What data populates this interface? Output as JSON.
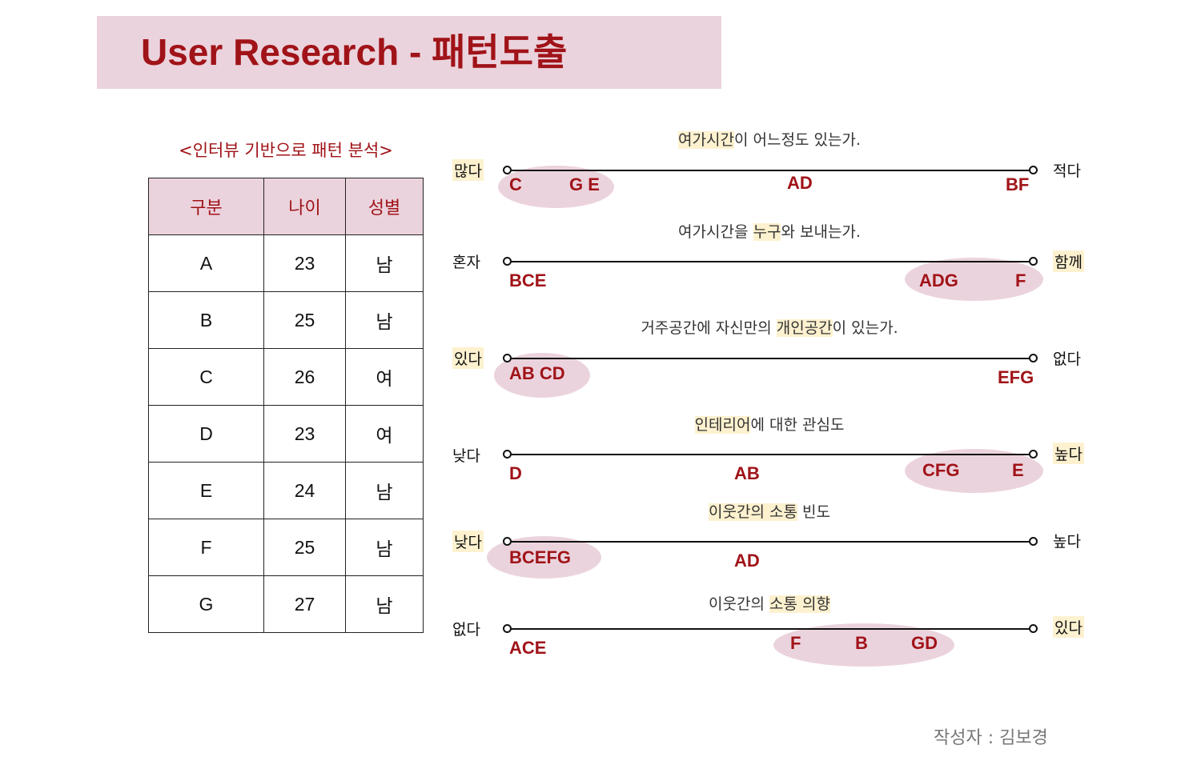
{
  "title": "User Research - 패턴도출",
  "table": {
    "caption": "<인터뷰 기반으로 패턴 분석>",
    "headers": [
      "구분",
      "나이",
      "성별"
    ],
    "rows": [
      [
        "A",
        "23",
        "남"
      ],
      [
        "B",
        "25",
        "남"
      ],
      [
        "C",
        "26",
        "여"
      ],
      [
        "D",
        "23",
        "여"
      ],
      [
        "E",
        "24",
        "남"
      ],
      [
        "F",
        "25",
        "남"
      ],
      [
        "G",
        "27",
        "남"
      ]
    ]
  },
  "scales": [
    {
      "question": {
        "pre": "",
        "hl": "여가시간",
        "post": "이 어느정도 있는가."
      },
      "left": "많다",
      "right": "적다",
      "markers": {
        "m1": "C",
        "m2": "G E",
        "m3": "AD",
        "m4": "BF"
      }
    },
    {
      "question": {
        "pre": "여가시간을 ",
        "hl": "누구",
        "post": "와 보내는가."
      },
      "left": "혼자",
      "right": "함께",
      "markers": {
        "m1": "BCE",
        "m2": "ADG",
        "m3": "F"
      }
    },
    {
      "question": {
        "pre": "거주공간에 자신만의 ",
        "hl": "개인공간",
        "post": "이 있는가."
      },
      "left": "있다",
      "right": "없다",
      "markers": {
        "m1": "AB CD",
        "m2": "EFG"
      }
    },
    {
      "question": {
        "pre": "",
        "hl": "인테리어",
        "post": "에 대한 관심도"
      },
      "left": "낮다",
      "right": "높다",
      "markers": {
        "m1": "D",
        "m2": "AB",
        "m3": "CFG",
        "m4": "E"
      }
    },
    {
      "question": {
        "pre": "",
        "hl": "이웃간의 소통",
        "post": " 빈도"
      },
      "left": "낮다",
      "right": "높다",
      "markers": {
        "m1": "BCEFG",
        "m2": "AD"
      }
    },
    {
      "question": {
        "pre": "이웃간의 ",
        "hl": "소통 의향",
        "post": ""
      },
      "left": "없다",
      "right": "있다",
      "markers": {
        "m1": "ACE",
        "m2": "F",
        "m3": "B",
        "m4": "GD"
      }
    }
  ],
  "author": "작성자 : 김보경",
  "colors": {
    "accent": "#a01318",
    "pink": "#ebd3dd",
    "highlight": "#fdf1cf"
  }
}
